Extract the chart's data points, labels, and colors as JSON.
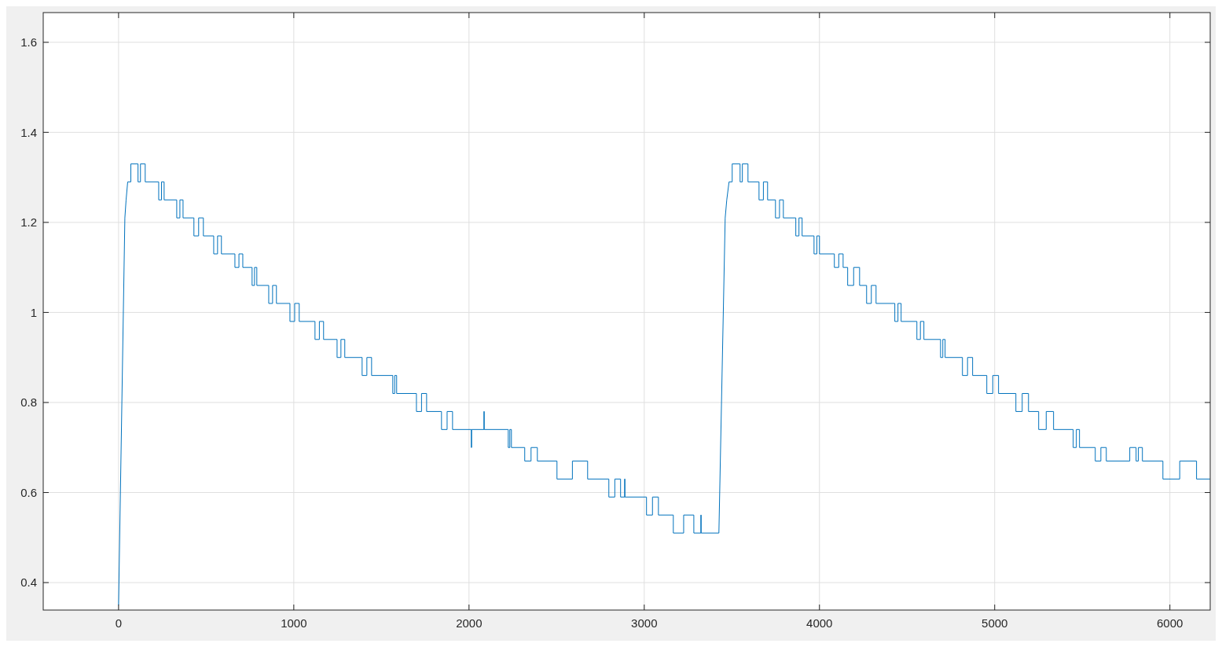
{
  "chart_data": {
    "type": "line",
    "color": "#0072bd",
    "grid": true,
    "xlim": [
      -430,
      6230
    ],
    "ylim": [
      0.339,
      1.666
    ],
    "xticks": [
      0,
      1000,
      2000,
      3000,
      4000,
      5000,
      6000
    ],
    "yticks": [
      0.4,
      0.6,
      0.8,
      1,
      1.2,
      1.4,
      1.6
    ],
    "x": [
      0,
      36,
      43,
      52,
      70,
      70,
      111,
      111,
      125,
      125,
      152,
      152,
      229,
      229,
      245,
      245,
      260,
      260,
      332,
      332,
      350,
      350,
      368,
      368,
      430,
      430,
      457,
      457,
      484,
      484,
      543,
      543,
      565,
      565,
      587,
      587,
      664,
      664,
      687,
      687,
      709,
      709,
      762,
      762,
      776,
      776,
      789,
      789,
      857,
      857,
      879,
      879,
      901,
      901,
      978,
      978,
      1005,
      1005,
      1031,
      1031,
      1121,
      1121,
      1146,
      1146,
      1170,
      1170,
      1247,
      1247,
      1269,
      1269,
      1291,
      1291,
      1390,
      1390,
      1417,
      1417,
      1444,
      1444,
      1565,
      1565,
      1576,
      1576,
      1587,
      1587,
      1700,
      1700,
      1729,
      1729,
      1758,
      1758,
      1843,
      1843,
      1875,
      1875,
      1906,
      1906,
      2013,
      2013,
      2015,
      2015,
      2085,
      2085,
      2087,
      2087,
      2224,
      2224,
      2233,
      2233,
      2242,
      2242,
      2318,
      2318,
      2354,
      2354,
      2390,
      2390,
      2502,
      2502,
      2590,
      2590,
      2677,
      2677,
      2798,
      2798,
      2832,
      2832,
      2865,
      2865,
      2888,
      2888,
      2890,
      2890,
      3013,
      3013,
      3047,
      3047,
      3081,
      3081,
      3166,
      3166,
      3225,
      3225,
      3283,
      3283,
      3323,
      3323,
      3325,
      3325,
      3426,
      3462,
      3471,
      3484,
      3502,
      3502,
      3547,
      3547,
      3560,
      3560,
      3592,
      3592,
      3655,
      3655,
      3680,
      3680,
      3704,
      3704,
      3749,
      3749,
      3772,
      3772,
      3794,
      3794,
      3865,
      3865,
      3883,
      3883,
      3901,
      3901,
      3969,
      3969,
      3985,
      3985,
      4000,
      4000,
      4085,
      4085,
      4110,
      4110,
      4135,
      4135,
      4161,
      4161,
      4195,
      4195,
      4229,
      4229,
      4269,
      4269,
      4296,
      4296,
      4323,
      4323,
      4430,
      4430,
      4448,
      4448,
      4466,
      4466,
      4556,
      4556,
      4576,
      4576,
      4596,
      4596,
      4691,
      4691,
      4704,
      4704,
      4717,
      4717,
      4816,
      4816,
      4845,
      4845,
      4874,
      4874,
      4955,
      4955,
      4989,
      4989,
      5022,
      5022,
      5121,
      5121,
      5157,
      5157,
      5193,
      5193,
      5251,
      5251,
      5294,
      5294,
      5336,
      5336,
      5448,
      5448,
      5466,
      5466,
      5484,
      5484,
      5574,
      5574,
      5606,
      5606,
      5637,
      5637,
      5771,
      5771,
      5807,
      5807,
      5820,
      5820,
      5843,
      5843,
      5960,
      5960,
      6056,
      6056,
      6152,
      6152,
      6229
    ],
    "values": [
      0.35,
      1.21,
      1.25,
      1.29,
      1.29,
      1.33,
      1.33,
      1.29,
      1.29,
      1.33,
      1.33,
      1.29,
      1.29,
      1.25,
      1.25,
      1.29,
      1.29,
      1.25,
      1.25,
      1.21,
      1.21,
      1.25,
      1.25,
      1.21,
      1.21,
      1.17,
      1.17,
      1.21,
      1.21,
      1.17,
      1.17,
      1.13,
      1.13,
      1.17,
      1.17,
      1.13,
      1.13,
      1.1,
      1.1,
      1.13,
      1.13,
      1.1,
      1.1,
      1.06,
      1.06,
      1.1,
      1.1,
      1.06,
      1.06,
      1.02,
      1.02,
      1.06,
      1.06,
      1.02,
      1.02,
      0.98,
      0.98,
      1.02,
      1.02,
      0.98,
      0.98,
      0.94,
      0.94,
      0.98,
      0.98,
      0.94,
      0.94,
      0.9,
      0.9,
      0.94,
      0.94,
      0.9,
      0.9,
      0.86,
      0.86,
      0.9,
      0.9,
      0.86,
      0.86,
      0.82,
      0.82,
      0.86,
      0.86,
      0.82,
      0.82,
      0.78,
      0.78,
      0.82,
      0.82,
      0.78,
      0.78,
      0.74,
      0.74,
      0.78,
      0.78,
      0.74,
      0.74,
      0.7,
      0.7,
      0.74,
      0.74,
      0.78,
      0.78,
      0.74,
      0.74,
      0.7,
      0.7,
      0.74,
      0.74,
      0.7,
      0.7,
      0.67,
      0.67,
      0.7,
      0.7,
      0.67,
      0.67,
      0.63,
      0.63,
      0.67,
      0.67,
      0.63,
      0.63,
      0.59,
      0.59,
      0.63,
      0.63,
      0.59,
      0.59,
      0.63,
      0.63,
      0.59,
      0.59,
      0.55,
      0.55,
      0.59,
      0.59,
      0.55,
      0.55,
      0.51,
      0.51,
      0.55,
      0.55,
      0.51,
      0.51,
      0.55,
      0.55,
      0.51,
      0.51,
      1.21,
      1.25,
      1.29,
      1.29,
      1.33,
      1.33,
      1.29,
      1.29,
      1.33,
      1.33,
      1.29,
      1.29,
      1.25,
      1.25,
      1.29,
      1.29,
      1.25,
      1.25,
      1.21,
      1.21,
      1.25,
      1.25,
      1.21,
      1.21,
      1.17,
      1.17,
      1.21,
      1.21,
      1.17,
      1.17,
      1.13,
      1.13,
      1.17,
      1.17,
      1.13,
      1.13,
      1.1,
      1.1,
      1.13,
      1.13,
      1.1,
      1.1,
      1.06,
      1.06,
      1.1,
      1.1,
      1.06,
      1.06,
      1.02,
      1.02,
      1.06,
      1.06,
      1.02,
      1.02,
      0.98,
      0.98,
      1.02,
      1.02,
      0.98,
      0.98,
      0.94,
      0.94,
      0.98,
      0.98,
      0.94,
      0.94,
      0.9,
      0.9,
      0.94,
      0.94,
      0.9,
      0.9,
      0.86,
      0.86,
      0.9,
      0.9,
      0.86,
      0.86,
      0.82,
      0.82,
      0.86,
      0.86,
      0.82,
      0.82,
      0.78,
      0.78,
      0.82,
      0.82,
      0.78,
      0.78,
      0.74,
      0.74,
      0.78,
      0.78,
      0.74,
      0.74,
      0.7,
      0.7,
      0.74,
      0.74,
      0.7,
      0.7,
      0.67,
      0.67,
      0.7,
      0.7,
      0.67,
      0.67,
      0.7,
      0.7,
      0.67,
      0.67,
      0.7,
      0.7,
      0.67,
      0.67,
      0.63,
      0.63,
      0.67,
      0.67,
      0.63,
      0.63
    ]
  }
}
